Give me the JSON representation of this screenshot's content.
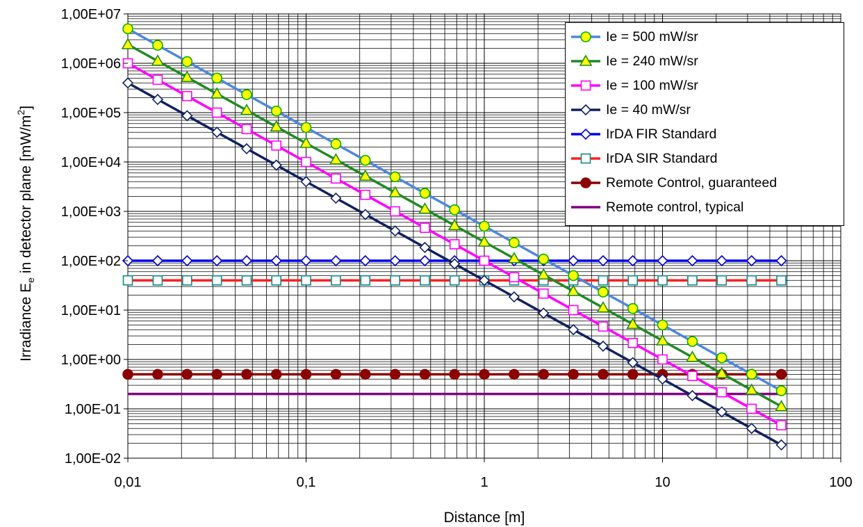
{
  "chart_data": {
    "type": "line",
    "xlabel": "Distance [m]",
    "ylabel_main": "Irradiance E",
    "ylabel_sub": "e",
    "ylabel_mid": " in detector plane [mW/m",
    "ylabel_sup": "2",
    "ylabel_end": "]",
    "x_scale": "log",
    "y_scale": "log",
    "xlim": [
      0.01,
      100
    ],
    "ylim": [
      0.01,
      10000000
    ],
    "grid": true,
    "legend_position": "top-right",
    "x_ticks": [
      {
        "value": 0.01,
        "label": "0,01"
      },
      {
        "value": 0.1,
        "label": "0,1"
      },
      {
        "value": 1,
        "label": "1"
      },
      {
        "value": 10,
        "label": "10"
      },
      {
        "value": 100,
        "label": "100"
      }
    ],
    "y_ticks": [
      {
        "value": 10000000,
        "label": "1,00E+07"
      },
      {
        "value": 1000000,
        "label": "1,00E+06"
      },
      {
        "value": 100000,
        "label": "1,00E+05"
      },
      {
        "value": 10000,
        "label": "1,00E+04"
      },
      {
        "value": 1000,
        "label": "1,00E+03"
      },
      {
        "value": 100,
        "label": "1,00E+02"
      },
      {
        "value": 10,
        "label": "1,00E+01"
      },
      {
        "value": 1,
        "label": "1,00E+00"
      },
      {
        "value": 0.1,
        "label": "1,00E-01"
      },
      {
        "value": 0.01,
        "label": "1,00E-02"
      }
    ],
    "x": [
      0.01,
      0.0147,
      0.0215,
      0.0316,
      0.0464,
      0.0681,
      0.1,
      0.147,
      0.215,
      0.316,
      0.464,
      0.681,
      1,
      1.47,
      2.15,
      3.16,
      4.64,
      6.81,
      10,
      14.7,
      21.5,
      31.6,
      46.4
    ],
    "series": [
      {
        "name": "Ie = 500 mW/sr",
        "kind": "inverse_square",
        "intensity": 500,
        "line_color": "#4f86e0",
        "marker": "circle",
        "marker_fill": "#ffff00",
        "marker_stroke": "#00b000"
      },
      {
        "name": "Ie = 240 mW/sr",
        "kind": "inverse_square",
        "intensity": 240,
        "line_color": "#1f8a22",
        "marker": "triangle",
        "marker_fill": "#ffff00",
        "marker_stroke": "#1f8a22"
      },
      {
        "name": "Ie = 100 mW/sr",
        "kind": "inverse_square",
        "intensity": 100,
        "line_color": "#ff00ff",
        "marker": "square",
        "marker_fill": "#ffffff",
        "marker_stroke": "#ff00ff"
      },
      {
        "name": "Ie = 40 mW/sr",
        "kind": "inverse_square",
        "intensity": 40,
        "line_color": "#10205e",
        "marker": "diamond",
        "marker_fill": "#ffffff",
        "marker_stroke": "#10205e"
      },
      {
        "name": "IrDA FIR Standard",
        "kind": "constant",
        "value": 100,
        "line_color": "#0000ee",
        "marker": "diamond",
        "marker_fill": "#ffffff",
        "marker_stroke": "#0000cc"
      },
      {
        "name": "IrDA SIR Standard",
        "kind": "constant",
        "value": 40,
        "line_color": "#ff2020",
        "marker": "square",
        "marker_fill": "#ffffff",
        "marker_stroke": "#0a8a8a"
      },
      {
        "name": "Remote Control, guaranteed",
        "kind": "constant",
        "value": 0.5,
        "line_color": "#8b0000",
        "marker": "circle",
        "marker_fill": "#8b0000",
        "marker_stroke": "#8b0000"
      },
      {
        "name": "Remote control, typical",
        "kind": "constant",
        "value": 0.2,
        "line_color": "#800080",
        "marker": "none",
        "marker_fill": "#800080",
        "marker_stroke": "#800080"
      }
    ]
  },
  "legend": {
    "items": [
      {
        "label": "Ie = 500 mW/sr"
      },
      {
        "label": "Ie = 240 mW/sr"
      },
      {
        "label": "Ie = 100 mW/sr"
      },
      {
        "label": "Ie = 40 mW/sr"
      },
      {
        "label": "IrDA FIR Standard"
      },
      {
        "label": "IrDA SIR Standard"
      },
      {
        "label": "Remote Control, guaranteed"
      },
      {
        "label": "Remote control, typical"
      }
    ]
  }
}
